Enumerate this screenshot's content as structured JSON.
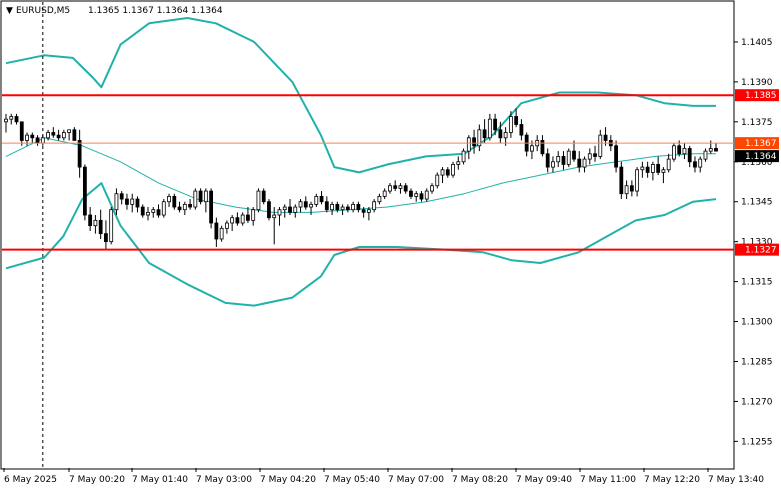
{
  "header": {
    "symbol": "EURUSD,M5",
    "ohlc": "1.1365 1.1367 1.1364 1.1364"
  },
  "colors": {
    "background": "#ffffff",
    "candle": "#000000",
    "band": "#20b2aa",
    "support_resistance": "#ff0000",
    "price_line": "#ff7f50",
    "bid_tag": "#000000",
    "ask_tag": "#ff4500"
  },
  "chart_data": {
    "type": "candlestick",
    "ylim": [
      1.1245,
      1.142
    ],
    "y_ticks": [
      "1.1405",
      "1.1390",
      "1.1375",
      "1.1360",
      "1.1345",
      "1.1330",
      "1.1315",
      "1.1300",
      "1.1285",
      "1.1270",
      "1.1255"
    ],
    "x_ticks": [
      "6 May 2025",
      "7 May 00:20",
      "7 May 01:40",
      "7 May 03:00",
      "7 May 04:20",
      "7 May 05:40",
      "7 May 07:00",
      "7 May 08:20",
      "7 May 09:40",
      "7 May 11:00",
      "7 May 12:20",
      "7 May 13:40"
    ],
    "horizontal_lines": [
      {
        "value": 1.1385,
        "label": "1.1385",
        "style": "red-thick"
      },
      {
        "value": 1.1327,
        "label": "1.1327",
        "style": "red-thick"
      },
      {
        "value": 1.1367,
        "label": "1.1367",
        "style": "ask"
      }
    ],
    "current_price": {
      "value": 1.1364,
      "label": "1.1364"
    },
    "session_separator_index": 7,
    "candles": [
      [
        1.1375,
        1.1378,
        1.1371,
        1.1376
      ],
      [
        1.1376,
        1.1378,
        1.1374,
        1.1377
      ],
      [
        1.1377,
        1.1378,
        1.1374,
        1.1375
      ],
      [
        1.1375,
        1.1375,
        1.1366,
        1.1368
      ],
      [
        1.1368,
        1.1371,
        1.1366,
        1.137
      ],
      [
        1.137,
        1.1371,
        1.1367,
        1.1369
      ],
      [
        1.1369,
        1.137,
        1.1366,
        1.1367
      ],
      [
        1.1367,
        1.137,
        1.1366,
        1.1369
      ],
      [
        1.1369,
        1.1372,
        1.1368,
        1.1371
      ],
      [
        1.1371,
        1.1373,
        1.1369,
        1.137
      ],
      [
        1.137,
        1.1372,
        1.1368,
        1.1369
      ],
      [
        1.1369,
        1.1372,
        1.1368,
        1.1371
      ],
      [
        1.1371,
        1.1372,
        1.1368,
        1.1372
      ],
      [
        1.1372,
        1.1373,
        1.1368,
        1.1368
      ],
      [
        1.1368,
        1.1372,
        1.1354,
        1.1358
      ],
      [
        1.1358,
        1.1359,
        1.1338,
        1.134
      ],
      [
        1.134,
        1.1343,
        1.1334,
        1.1336
      ],
      [
        1.1336,
        1.134,
        1.1333,
        1.1338
      ],
      [
        1.1338,
        1.1342,
        1.1331,
        1.1333
      ],
      [
        1.1333,
        1.1338,
        1.1327,
        1.133
      ],
      [
        1.133,
        1.1343,
        1.1329,
        1.1342
      ],
      [
        1.1342,
        1.135,
        1.134,
        1.1348
      ],
      [
        1.1348,
        1.1349,
        1.1344,
        1.1346
      ],
      [
        1.1346,
        1.1348,
        1.1342,
        1.1344
      ],
      [
        1.1344,
        1.1348,
        1.1341,
        1.1346
      ],
      [
        1.1346,
        1.1347,
        1.1341,
        1.1343
      ],
      [
        1.1343,
        1.1344,
        1.1339,
        1.134
      ],
      [
        1.134,
        1.1343,
        1.1338,
        1.1341
      ],
      [
        1.1341,
        1.1343,
        1.1339,
        1.1342
      ],
      [
        1.1342,
        1.1344,
        1.1339,
        1.134
      ],
      [
        1.134,
        1.1346,
        1.1339,
        1.1345
      ],
      [
        1.1345,
        1.1348,
        1.1343,
        1.1347
      ],
      [
        1.1347,
        1.1348,
        1.1342,
        1.1343
      ],
      [
        1.1343,
        1.1345,
        1.1341,
        1.1342
      ],
      [
        1.1342,
        1.1345,
        1.134,
        1.1344
      ],
      [
        1.1344,
        1.1346,
        1.1342,
        1.1343
      ],
      [
        1.1343,
        1.135,
        1.1342,
        1.1349
      ],
      [
        1.1349,
        1.135,
        1.1344,
        1.1345
      ],
      [
        1.1345,
        1.135,
        1.1341,
        1.1349
      ],
      [
        1.1349,
        1.135,
        1.1335,
        1.1337
      ],
      [
        1.1337,
        1.1339,
        1.1328,
        1.1331
      ],
      [
        1.1331,
        1.1336,
        1.133,
        1.1335
      ],
      [
        1.1335,
        1.1338,
        1.1333,
        1.1337
      ],
      [
        1.1337,
        1.134,
        1.1334,
        1.1339
      ],
      [
        1.1339,
        1.1341,
        1.1336,
        1.1337
      ],
      [
        1.1337,
        1.1341,
        1.1336,
        1.134
      ],
      [
        1.134,
        1.1343,
        1.1337,
        1.1338
      ],
      [
        1.1338,
        1.1343,
        1.1336,
        1.1342
      ],
      [
        1.1342,
        1.135,
        1.1341,
        1.1349
      ],
      [
        1.1349,
        1.135,
        1.1344,
        1.1345
      ],
      [
        1.1345,
        1.1346,
        1.1338,
        1.1339
      ],
      [
        1.1339,
        1.1343,
        1.1329,
        1.134
      ],
      [
        1.134,
        1.1343,
        1.1336,
        1.1342
      ],
      [
        1.1342,
        1.1344,
        1.1339,
        1.1343
      ],
      [
        1.1343,
        1.1346,
        1.134,
        1.1341
      ],
      [
        1.1341,
        1.1344,
        1.1339,
        1.1343
      ],
      [
        1.1343,
        1.1346,
        1.1341,
        1.1345
      ],
      [
        1.1345,
        1.1347,
        1.1342,
        1.1343
      ],
      [
        1.1343,
        1.1345,
        1.134,
        1.1344
      ],
      [
        1.1344,
        1.1348,
        1.1343,
        1.1347
      ],
      [
        1.1347,
        1.1349,
        1.1344,
        1.1345
      ],
      [
        1.1345,
        1.1347,
        1.1341,
        1.1342
      ],
      [
        1.1342,
        1.1345,
        1.134,
        1.1344
      ],
      [
        1.1344,
        1.1345,
        1.1341,
        1.1342
      ],
      [
        1.1342,
        1.1344,
        1.134,
        1.1343
      ],
      [
        1.1343,
        1.1344,
        1.1341,
        1.1342
      ],
      [
        1.1342,
        1.1345,
        1.1341,
        1.1344
      ],
      [
        1.1344,
        1.1345,
        1.1341,
        1.1342
      ],
      [
        1.1342,
        1.1343,
        1.1339,
        1.1341
      ],
      [
        1.1341,
        1.1343,
        1.1338,
        1.1342
      ],
      [
        1.1342,
        1.1346,
        1.1341,
        1.1345
      ],
      [
        1.1345,
        1.1348,
        1.1344,
        1.1347
      ],
      [
        1.1347,
        1.135,
        1.1346,
        1.1349
      ],
      [
        1.1349,
        1.1352,
        1.1348,
        1.1351
      ],
      [
        1.1351,
        1.1353,
        1.1349,
        1.135
      ],
      [
        1.135,
        1.1352,
        1.1348,
        1.1351
      ],
      [
        1.1351,
        1.1352,
        1.1348,
        1.1349
      ],
      [
        1.1349,
        1.135,
        1.1346,
        1.1347
      ],
      [
        1.1347,
        1.1349,
        1.1345,
        1.1348
      ],
      [
        1.1348,
        1.1349,
        1.1345,
        1.1346
      ],
      [
        1.1346,
        1.135,
        1.1345,
        1.1349
      ],
      [
        1.1349,
        1.1352,
        1.1348,
        1.1351
      ],
      [
        1.1351,
        1.1356,
        1.135,
        1.1355
      ],
      [
        1.1355,
        1.1358,
        1.1352,
        1.1357
      ],
      [
        1.1357,
        1.1358,
        1.1354,
        1.1355
      ],
      [
        1.1355,
        1.136,
        1.1354,
        1.1359
      ],
      [
        1.1359,
        1.1362,
        1.1357,
        1.136
      ],
      [
        1.136,
        1.1365,
        1.1359,
        1.1364
      ],
      [
        1.1364,
        1.137,
        1.1361,
        1.1369
      ],
      [
        1.1369,
        1.1372,
        1.1363,
        1.1366
      ],
      [
        1.1366,
        1.1374,
        1.1364,
        1.1372
      ],
      [
        1.1372,
        1.1376,
        1.1367,
        1.1369
      ],
      [
        1.1369,
        1.1378,
        1.1368,
        1.1376
      ],
      [
        1.1376,
        1.1378,
        1.137,
        1.1372
      ],
      [
        1.1372,
        1.1375,
        1.1367,
        1.1369
      ],
      [
        1.1369,
        1.1373,
        1.1366,
        1.1371
      ],
      [
        1.1371,
        1.1379,
        1.1369,
        1.1377
      ],
      [
        1.1377,
        1.138,
        1.1373,
        1.1374
      ],
      [
        1.1374,
        1.1376,
        1.1368,
        1.137
      ],
      [
        1.137,
        1.1371,
        1.1362,
        1.1364
      ],
      [
        1.1364,
        1.1368,
        1.1361,
        1.1366
      ],
      [
        1.1366,
        1.137,
        1.1364,
        1.1368
      ],
      [
        1.1368,
        1.137,
        1.1362,
        1.1363
      ],
      [
        1.1363,
        1.1365,
        1.1356,
        1.1358
      ],
      [
        1.1358,
        1.1362,
        1.1356,
        1.136
      ],
      [
        1.136,
        1.1364,
        1.1358,
        1.1362
      ],
      [
        1.1362,
        1.1364,
        1.1357,
        1.1359
      ],
      [
        1.1359,
        1.1365,
        1.1358,
        1.1364
      ],
      [
        1.1364,
        1.1368,
        1.136,
        1.1361
      ],
      [
        1.1361,
        1.1364,
        1.1356,
        1.1358
      ],
      [
        1.1358,
        1.1362,
        1.1356,
        1.1361
      ],
      [
        1.1361,
        1.1365,
        1.1359,
        1.1363
      ],
      [
        1.1363,
        1.1366,
        1.136,
        1.1362
      ],
      [
        1.1362,
        1.1372,
        1.1361,
        1.137
      ],
      [
        1.137,
        1.1373,
        1.1366,
        1.1368
      ],
      [
        1.1368,
        1.137,
        1.1364,
        1.1366
      ],
      [
        1.1366,
        1.1368,
        1.1356,
        1.1358
      ],
      [
        1.1358,
        1.136,
        1.1346,
        1.1348
      ],
      [
        1.1348,
        1.1353,
        1.1346,
        1.1351
      ],
      [
        1.1351,
        1.1353,
        1.1347,
        1.1349
      ],
      [
        1.1349,
        1.1358,
        1.1347,
        1.1357
      ],
      [
        1.1357,
        1.136,
        1.1354,
        1.1358
      ],
      [
        1.1358,
        1.136,
        1.1354,
        1.1356
      ],
      [
        1.1356,
        1.136,
        1.1353,
        1.1359
      ],
      [
        1.1359,
        1.1362,
        1.1355,
        1.1356
      ],
      [
        1.1356,
        1.1358,
        1.1352,
        1.1357
      ],
      [
        1.1357,
        1.1363,
        1.1356,
        1.1361
      ],
      [
        1.1361,
        1.1367,
        1.136,
        1.1366
      ],
      [
        1.1366,
        1.1368,
        1.1362,
        1.1363
      ],
      [
        1.1363,
        1.1367,
        1.1361,
        1.1365
      ],
      [
        1.1365,
        1.1366,
        1.1358,
        1.136
      ],
      [
        1.136,
        1.1362,
        1.1356,
        1.1358
      ],
      [
        1.1358,
        1.1362,
        1.1356,
        1.1361
      ],
      [
        1.1361,
        1.1365,
        1.136,
        1.1364
      ],
      [
        1.1364,
        1.1368,
        1.1363,
        1.1365
      ],
      [
        1.1365,
        1.1367,
        1.1364,
        1.1364
      ]
    ],
    "ma": [
      [
        0,
        1.1362
      ],
      [
        20,
        1.1369
      ],
      [
        40,
        1.1366
      ],
      [
        60,
        1.136
      ],
      [
        80,
        1.1352
      ],
      [
        100,
        1.1346
      ],
      [
        120,
        1.1343
      ],
      [
        140,
        1.1341
      ],
      [
        160,
        1.1341
      ],
      [
        180,
        1.1342
      ],
      [
        200,
        1.1343
      ],
      [
        220,
        1.1345
      ],
      [
        240,
        1.1348
      ],
      [
        260,
        1.1352
      ],
      [
        280,
        1.1355
      ],
      [
        300,
        1.1358
      ],
      [
        320,
        1.136
      ],
      [
        340,
        1.1362
      ],
      [
        360,
        1.1363
      ],
      [
        372,
        1.1363
      ]
    ],
    "bb_upper": [
      [
        0,
        1.1397
      ],
      [
        20,
        1.14
      ],
      [
        35,
        1.1399
      ],
      [
        45,
        1.1392
      ],
      [
        50,
        1.1388
      ],
      [
        60,
        1.1404
      ],
      [
        75,
        1.1412
      ],
      [
        95,
        1.1414
      ],
      [
        110,
        1.1412
      ],
      [
        130,
        1.1405
      ],
      [
        150,
        1.139
      ],
      [
        165,
        1.137
      ],
      [
        172,
        1.1358
      ],
      [
        185,
        1.1356
      ],
      [
        200,
        1.1359
      ],
      [
        220,
        1.1362
      ],
      [
        240,
        1.1363
      ],
      [
        255,
        1.137
      ],
      [
        270,
        1.1382
      ],
      [
        290,
        1.1386
      ],
      [
        310,
        1.1386
      ],
      [
        330,
        1.1385
      ],
      [
        345,
        1.1382
      ],
      [
        360,
        1.1381
      ],
      [
        372,
        1.1381
      ]
    ],
    "bb_lower": [
      [
        0,
        1.132
      ],
      [
        20,
        1.1324
      ],
      [
        30,
        1.1332
      ],
      [
        40,
        1.1346
      ],
      [
        50,
        1.1352
      ],
      [
        60,
        1.1336
      ],
      [
        75,
        1.1322
      ],
      [
        95,
        1.1314
      ],
      [
        115,
        1.1307
      ],
      [
        130,
        1.1306
      ],
      [
        150,
        1.1309
      ],
      [
        165,
        1.1317
      ],
      [
        172,
        1.1325
      ],
      [
        185,
        1.1328
      ],
      [
        205,
        1.1328
      ],
      [
        230,
        1.1327
      ],
      [
        250,
        1.1326
      ],
      [
        265,
        1.1323
      ],
      [
        280,
        1.1322
      ],
      [
        300,
        1.1326
      ],
      [
        315,
        1.1332
      ],
      [
        330,
        1.1338
      ],
      [
        345,
        1.134
      ],
      [
        360,
        1.1345
      ],
      [
        372,
        1.1346
      ]
    ]
  }
}
